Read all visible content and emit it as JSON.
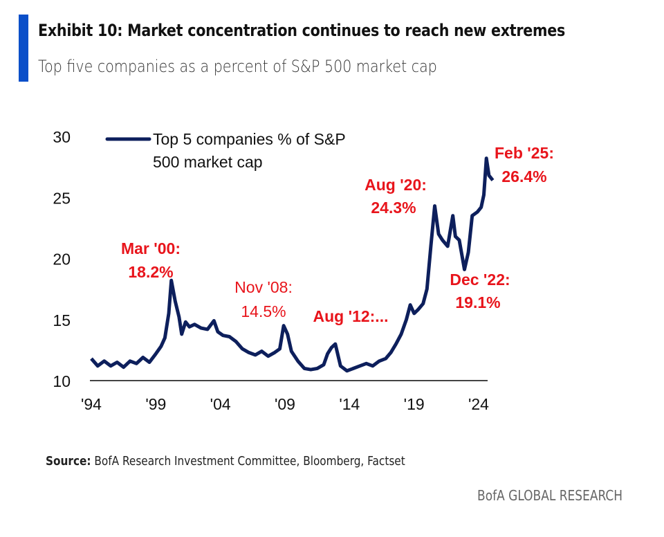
{
  "header": {
    "title": "Exhibit 10: Market concentration continues to reach new extremes",
    "subtitle": "Top five companies as a percent of S&P 500 market cap",
    "accent_color": "#0a4fc9"
  },
  "chart_data": {
    "type": "line",
    "title": "",
    "xlabel": "",
    "ylabel": "",
    "xlim": [
      1994,
      2025.2
    ],
    "ylim": [
      10,
      30
    ],
    "y_ticks": [
      "10",
      "15",
      "20",
      "25",
      "30"
    ],
    "x_ticks": [
      "'94",
      "'99",
      "'04",
      "'09",
      "'14",
      "'19",
      "'24"
    ],
    "grid": false,
    "legend": {
      "position": "top-left",
      "entries": [
        "Top 5 companies % of S&P",
        "500 market cap"
      ]
    },
    "series": [
      {
        "name": "Top 5 companies % of S&P 500 market cap",
        "color": "#0d1f5c",
        "x": [
          1994.0,
          1994.5,
          1995.0,
          1995.5,
          1996.0,
          1996.5,
          1997.0,
          1997.5,
          1998.0,
          1998.5,
          1999.0,
          1999.4,
          1999.7,
          2000.0,
          2000.2,
          2000.5,
          2000.8,
          2001.0,
          2001.3,
          2001.6,
          2002.0,
          2002.5,
          2003.0,
          2003.5,
          2003.8,
          2004.2,
          2004.7,
          2005.2,
          2005.7,
          2006.2,
          2006.7,
          2007.2,
          2007.7,
          2008.2,
          2008.6,
          2008.9,
          2009.2,
          2009.5,
          2010.0,
          2010.5,
          2011.0,
          2011.5,
          2012.0,
          2012.3,
          2012.6,
          2012.9,
          2013.3,
          2013.8,
          2014.3,
          2014.8,
          2015.3,
          2015.8,
          2016.3,
          2016.8,
          2017.2,
          2017.6,
          2018.0,
          2018.4,
          2018.7,
          2019.0,
          2019.3,
          2019.7,
          2020.0,
          2020.3,
          2020.6,
          2020.9,
          2021.2,
          2021.6,
          2022.0,
          2022.2,
          2022.5,
          2022.9,
          2023.2,
          2023.5,
          2023.9,
          2024.2,
          2024.4,
          2024.6,
          2024.8,
          2025.1
        ],
        "y": [
          11.8,
          11.2,
          11.6,
          11.2,
          11.5,
          11.1,
          11.6,
          11.4,
          11.9,
          11.5,
          12.2,
          12.8,
          13.5,
          15.5,
          18.2,
          16.5,
          15.2,
          13.8,
          14.8,
          14.4,
          14.6,
          14.3,
          14.2,
          14.9,
          14.0,
          13.7,
          13.6,
          13.2,
          12.6,
          12.3,
          12.1,
          12.4,
          12.0,
          12.3,
          12.6,
          14.5,
          13.8,
          12.4,
          11.6,
          11.0,
          10.9,
          11.0,
          11.3,
          12.2,
          12.7,
          13.0,
          11.2,
          10.8,
          11.0,
          11.2,
          11.4,
          11.2,
          11.6,
          11.8,
          12.3,
          13.0,
          13.8,
          15.0,
          16.2,
          15.5,
          15.8,
          16.3,
          17.5,
          21.0,
          24.3,
          22.0,
          21.5,
          21.0,
          23.5,
          21.8,
          21.5,
          19.1,
          20.5,
          23.5,
          23.8,
          24.2,
          25.2,
          28.2,
          26.8,
          26.4
        ]
      }
    ],
    "annotations": [
      {
        "label": "Mar '00:",
        "value": "18.2%",
        "bold": true
      },
      {
        "label": "Nov '08:",
        "value": "14.5%",
        "bold": false
      },
      {
        "label": "Aug '12:...",
        "value": "",
        "bold": true
      },
      {
        "label": "Aug '20:",
        "value": "24.3%",
        "bold": true
      },
      {
        "label": "Dec '22:",
        "value": "19.1%",
        "bold": true
      },
      {
        "label": "Feb '25:",
        "value": "26.4%",
        "bold": true
      }
    ],
    "annotation_color": "#e8141b"
  },
  "footer": {
    "source_label": "Source:",
    "source_text": " BofA Research Investment Committee, Bloomberg, Factset",
    "brand": "BofA GLOBAL RESEARCH"
  }
}
